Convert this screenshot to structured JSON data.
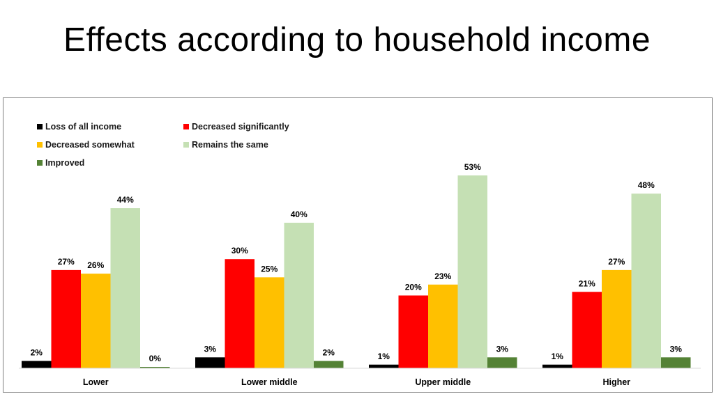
{
  "title": "Effects according to household income",
  "chart_data": {
    "type": "bar",
    "categories": [
      "Lower",
      "Lower middle",
      "Upper middle",
      "Higher"
    ],
    "series": [
      {
        "name": "Loss of all income",
        "color": "#000000",
        "values": [
          2,
          3,
          1,
          1
        ]
      },
      {
        "name": "Decreased significantly",
        "color": "#ff0000",
        "values": [
          27,
          30,
          20,
          21
        ]
      },
      {
        "name": "Decreased somewhat",
        "color": "#ffc000",
        "values": [
          26,
          25,
          23,
          27
        ]
      },
      {
        "name": "Remains the same",
        "color": "#c5e0b4",
        "values": [
          44,
          40,
          53,
          48
        ]
      },
      {
        "name": "Improved",
        "color": "#548235",
        "values": [
          0,
          2,
          3,
          3
        ]
      }
    ],
    "value_suffix": "%",
    "ylim": [
      0,
      60
    ],
    "grid": false,
    "legend_position": "top-left"
  }
}
